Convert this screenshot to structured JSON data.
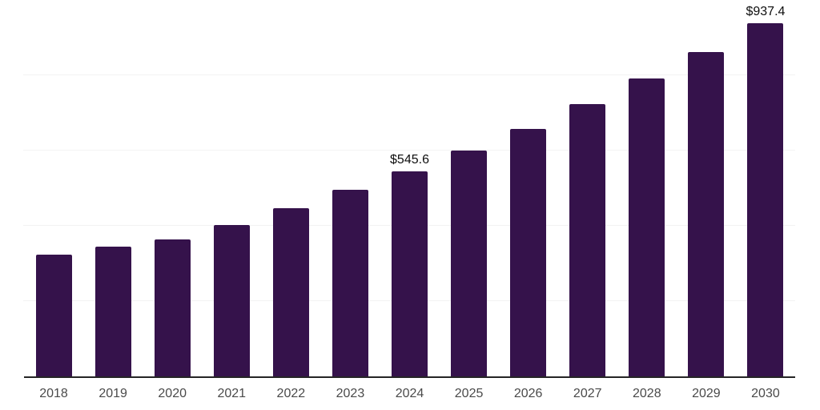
{
  "chart_data": {
    "type": "bar",
    "title": "",
    "xlabel": "",
    "ylabel": "",
    "categories": [
      "2018",
      "2019",
      "2020",
      "2021",
      "2022",
      "2023",
      "2024",
      "2025",
      "2026",
      "2027",
      "2028",
      "2029",
      "2030"
    ],
    "values": [
      324.4,
      344.4,
      363.7,
      402.7,
      447.4,
      494.9,
      545.6,
      600.2,
      656.9,
      724.4,
      791.9,
      861.4,
      937.4
    ],
    "data_labels": {
      "2024": "$545.6",
      "2030": "$937.4"
    },
    "ylim": [
      0,
      1000
    ],
    "gridline_values": [
      200,
      400,
      600,
      800,
      1000
    ],
    "grid": "horizontal",
    "legend": "none"
  },
  "colors": {
    "bar": "#35124B",
    "gridline": "#f3f3f3",
    "axis_line": "#252525",
    "tick_label": "#4a4a4a",
    "data_label": "#0e0e0e",
    "background": "#ffffff"
  }
}
